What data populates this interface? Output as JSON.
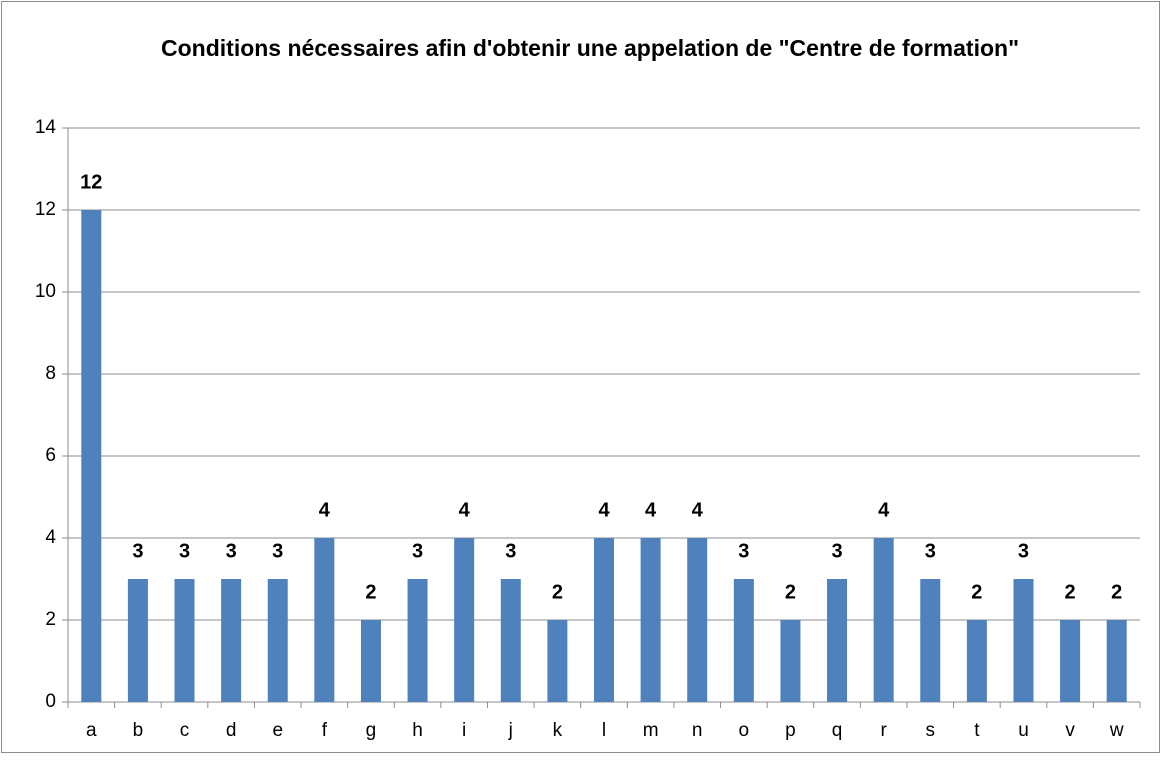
{
  "chart_data": {
    "type": "bar",
    "title": "Conditions nécessaires afin d'obtenir une appelation de \"Centre de formation\"",
    "categories": [
      "a",
      "b",
      "c",
      "d",
      "e",
      "f",
      "g",
      "h",
      "i",
      "j",
      "k",
      "l",
      "m",
      "n",
      "o",
      "p",
      "q",
      "r",
      "s",
      "t",
      "u",
      "v",
      "w"
    ],
    "values": [
      12,
      3,
      3,
      3,
      3,
      4,
      2,
      3,
      4,
      3,
      2,
      4,
      4,
      4,
      3,
      2,
      3,
      4,
      3,
      2,
      3,
      2,
      2
    ],
    "color": "#4f81bd",
    "ylim": [
      0,
      14
    ],
    "yticks": [
      0,
      2,
      4,
      6,
      8,
      10,
      12,
      14
    ],
    "grid": true
  }
}
